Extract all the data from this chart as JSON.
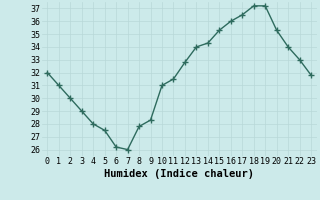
{
  "x": [
    0,
    1,
    2,
    3,
    4,
    5,
    6,
    7,
    8,
    9,
    10,
    11,
    12,
    13,
    14,
    15,
    16,
    17,
    18,
    19,
    20,
    21,
    22,
    23
  ],
  "y": [
    32,
    31,
    30,
    29,
    28,
    27.5,
    26.2,
    26,
    27.8,
    28.3,
    31,
    31.5,
    32.8,
    34,
    34.3,
    35.3,
    36,
    36.5,
    37.2,
    37.2,
    35.3,
    34,
    33,
    31.8
  ],
  "xlabel": "Humidex (Indice chaleur)",
  "xlim": [
    -0.5,
    23.5
  ],
  "ylim": [
    25.5,
    37.5
  ],
  "yticks": [
    26,
    27,
    28,
    29,
    30,
    31,
    32,
    33,
    34,
    35,
    36,
    37
  ],
  "xticks": [
    0,
    1,
    2,
    3,
    4,
    5,
    6,
    7,
    8,
    9,
    10,
    11,
    12,
    13,
    14,
    15,
    16,
    17,
    18,
    19,
    20,
    21,
    22,
    23
  ],
  "line_color": "#2e6b5e",
  "marker": "+",
  "bg_color": "#cceaea",
  "grid_color": "#b8d8d8",
  "tick_label_fontsize": 6.0,
  "xlabel_fontsize": 7.5,
  "line_width": 1.0,
  "marker_size": 4,
  "marker_edge_width": 1.0
}
